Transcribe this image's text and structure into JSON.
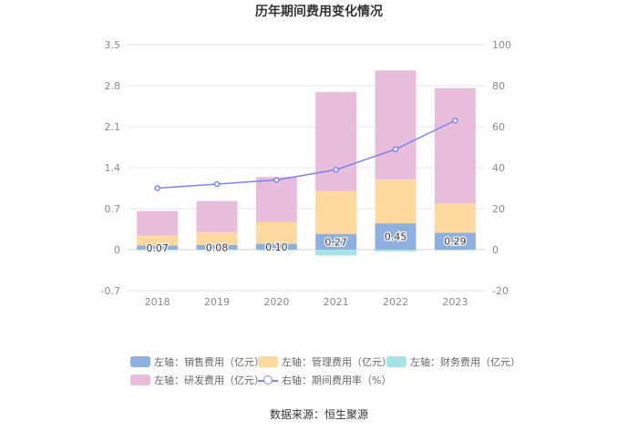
{
  "chart_data": {
    "type": "bar",
    "title": "历年期间费用变化情况",
    "categories": [
      "2018",
      "2019",
      "2020",
      "2021",
      "2022",
      "2023"
    ],
    "left_axis": {
      "min": -0.7,
      "max": 3.5,
      "ticks": [
        "3.5",
        "2.8",
        "2.1",
        "1.4",
        "0.7",
        "0",
        "-0.7"
      ]
    },
    "right_axis": {
      "min": -20,
      "max": 100,
      "ticks": [
        "100",
        "80",
        "60",
        "40",
        "20",
        "0",
        "-20"
      ]
    },
    "series": [
      {
        "name": "左轴：销售费用（亿元）",
        "axis": "left",
        "kind": "bar",
        "color": "#8fafe0",
        "values": [
          0.07,
          0.08,
          0.1,
          0.27,
          0.45,
          0.29
        ],
        "labels": [
          "0.07",
          "0.08",
          "0.10",
          "0.27",
          "0.45",
          "0.29"
        ]
      },
      {
        "name": "左轴：管理费用（亿元）",
        "axis": "left",
        "kind": "bar",
        "color": "#fdd9a0",
        "values": [
          0.17,
          0.22,
          0.37,
          0.73,
          0.75,
          0.5
        ]
      },
      {
        "name": "左轴：财务费用（亿元）",
        "axis": "left",
        "kind": "bar",
        "color": "#a6e3e6",
        "values": [
          -0.01,
          -0.01,
          -0.01,
          -0.1,
          -0.03,
          -0.01
        ]
      },
      {
        "name": "左轴：研发费用（亿元）",
        "axis": "left",
        "kind": "bar",
        "color": "#e8bcdb",
        "values": [
          0.42,
          0.53,
          0.77,
          1.69,
          1.86,
          1.97
        ]
      },
      {
        "name": "右轴：期间费用率（%）",
        "axis": "right",
        "kind": "line",
        "color": "#7b83f0",
        "values": [
          30,
          32,
          34,
          39,
          49,
          63
        ]
      }
    ]
  },
  "source": "数据来源：恒生聚源"
}
